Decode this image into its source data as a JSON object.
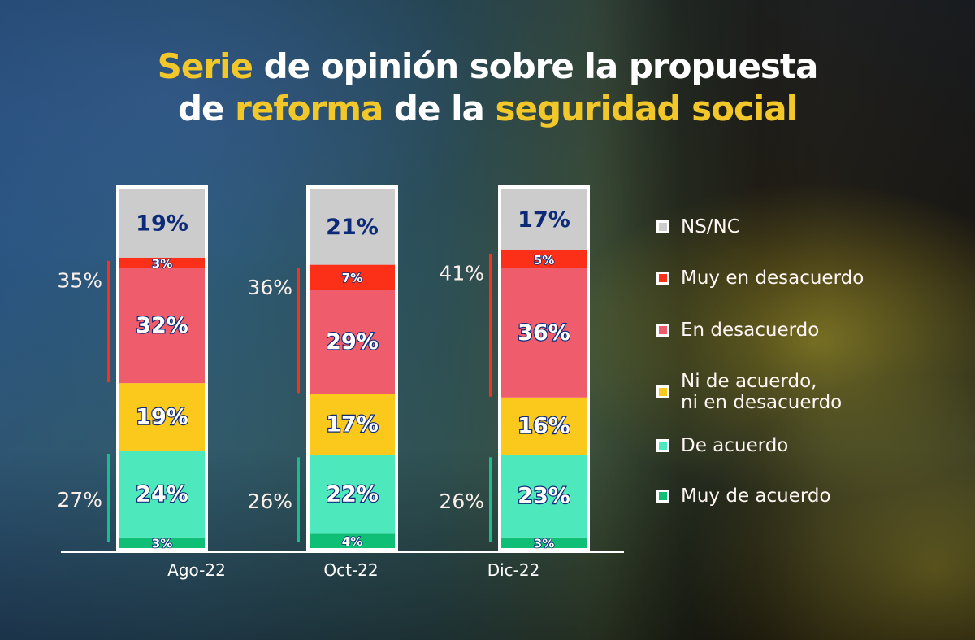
{
  "title": {
    "line1": [
      {
        "text": "Serie",
        "highlight": true
      },
      {
        "text": " de opinión sobre la propuesta",
        "highlight": false
      }
    ],
    "line2": [
      {
        "text": "de ",
        "highlight": false
      },
      {
        "text": "reforma",
        "highlight": true
      },
      {
        "text": " de la ",
        "highlight": false
      },
      {
        "text": "seguridad social",
        "highlight": true
      }
    ]
  },
  "colors": {
    "title_highlight": "#f2c72a",
    "frame": "#ffffff",
    "label_dark": "#0d2a78",
    "label_fill": "#ffffff",
    "side_label": "#fbefe9"
  },
  "chart_data": {
    "type": "bar",
    "stacked": true,
    "title": "Serie de opinión sobre la propuesta de reforma de la seguridad social",
    "xlabel": "",
    "ylabel": "",
    "ylim": [
      0,
      100
    ],
    "grid": false,
    "legend_position": "right",
    "categories": [
      "Ago-22",
      "Oct-22",
      "Dic-22"
    ],
    "series": [
      {
        "name": "Muy de acuerdo",
        "color": "#0fbf76",
        "values": [
          3,
          4,
          3
        ]
      },
      {
        "name": "De acuerdo",
        "color": "#4ee8bd",
        "values": [
          24,
          22,
          23
        ]
      },
      {
        "name": "Ni de acuerdo, ni en desacuerdo",
        "color": "#fbc81c",
        "values": [
          19,
          17,
          16
        ]
      },
      {
        "name": "En desacuerdo",
        "color": "#ef5c6c",
        "values": [
          32,
          29,
          36
        ]
      },
      {
        "name": "Muy en desacuerdo",
        "color": "#fc2f19",
        "values": [
          3,
          7,
          5
        ]
      },
      {
        "name": "NS/NC",
        "color": "#cccccc",
        "values": [
          19,
          21,
          17
        ]
      }
    ],
    "value_labels": [
      [
        "3%",
        "24%",
        "19%",
        "32%",
        "3%",
        "19%"
      ],
      [
        "4%",
        "22%",
        "17%",
        "29%",
        "7%",
        "21%"
      ],
      [
        "3%",
        "23%",
        "16%",
        "36%",
        "5%",
        "17%"
      ]
    ],
    "group_totals": {
      "disagree": {
        "label_values": [
          "35%",
          "36%",
          "41%"
        ],
        "values": [
          35,
          36,
          41
        ],
        "color": "#fc2f19"
      },
      "agree": {
        "label_values": [
          "27%",
          "26%",
          "26%"
        ],
        "values": [
          27,
          26,
          26
        ],
        "color": "#14c08e"
      }
    }
  },
  "legend": {
    "items": [
      {
        "label_lines": [
          "NS/NC"
        ],
        "color": "#cccccc"
      },
      {
        "label_lines": [
          "Muy en desacuerdo"
        ],
        "color": "#fc2f19"
      },
      {
        "label_lines": [
          "En desacuerdo"
        ],
        "color": "#ef5c6c"
      },
      {
        "label_lines": [
          "Ni de acuerdo,",
          "ni en desacuerdo"
        ],
        "color": "#fbc81c"
      },
      {
        "label_lines": [
          "De acuerdo"
        ],
        "color": "#4ee8bd"
      },
      {
        "label_lines": [
          "Muy de acuerdo"
        ],
        "color": "#0fbf76"
      }
    ]
  }
}
